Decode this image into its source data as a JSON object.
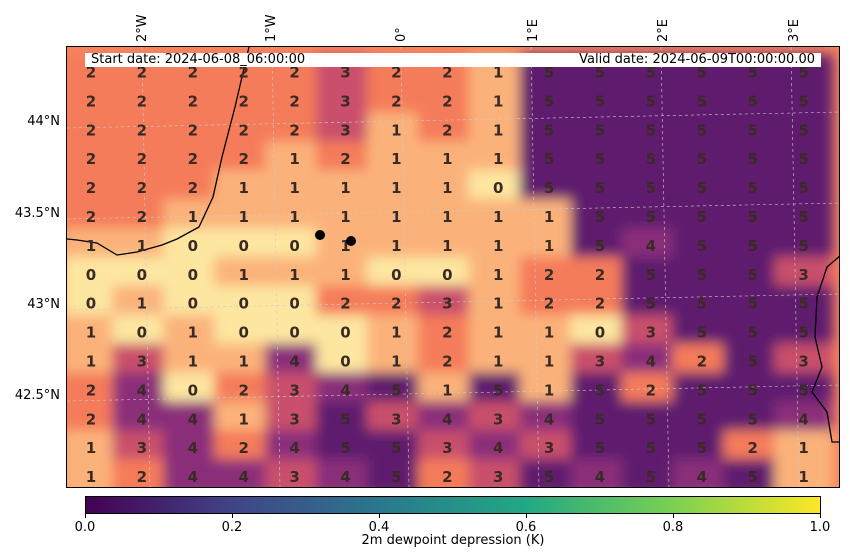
{
  "map": {
    "start_date": "Start date: 2024-06-08_06:00:00",
    "valid_date": "Valid  date: 2024-06-09T00:00:00.00",
    "lon_labels": [
      "2°W",
      "1°W",
      "0°",
      "1°E",
      "2°E",
      "3°E"
    ],
    "lat_labels": [
      "44°N",
      "43.5°N",
      "43°N",
      "42.5°N"
    ],
    "grid_values": [
      [
        2,
        2,
        2,
        2,
        2,
        3,
        2,
        2,
        1,
        5,
        5,
        5,
        5,
        5,
        5
      ],
      [
        2,
        2,
        2,
        2,
        2,
        3,
        2,
        2,
        1,
        5,
        5,
        5,
        5,
        5,
        5
      ],
      [
        2,
        2,
        2,
        2,
        2,
        3,
        1,
        2,
        1,
        5,
        5,
        5,
        5,
        5,
        5
      ],
      [
        2,
        2,
        2,
        2,
        1,
        2,
        1,
        1,
        1,
        5,
        5,
        5,
        5,
        5,
        5
      ],
      [
        2,
        2,
        2,
        1,
        1,
        1,
        1,
        1,
        0,
        5,
        5,
        5,
        5,
        5,
        5
      ],
      [
        2,
        2,
        1,
        1,
        1,
        1,
        1,
        1,
        1,
        1,
        5,
        5,
        5,
        5,
        5
      ],
      [
        1,
        1,
        0,
        0,
        0,
        1,
        1,
        1,
        1,
        1,
        5,
        4,
        5,
        5,
        5
      ],
      [
        0,
        0,
        0,
        1,
        1,
        1,
        0,
        0,
        1,
        2,
        2,
        5,
        5,
        5,
        3
      ],
      [
        0,
        1,
        0,
        0,
        0,
        2,
        2,
        3,
        1,
        2,
        2,
        5,
        5,
        5,
        5
      ],
      [
        1,
        0,
        1,
        0,
        0,
        0,
        1,
        2,
        1,
        1,
        0,
        3,
        5,
        5,
        5
      ],
      [
        1,
        3,
        1,
        1,
        4,
        0,
        1,
        2,
        1,
        1,
        3,
        4,
        2,
        5,
        3
      ],
      [
        2,
        4,
        0,
        2,
        3,
        4,
        5,
        1,
        5,
        1,
        5,
        2,
        5,
        5,
        5
      ],
      [
        2,
        4,
        4,
        1,
        3,
        5,
        3,
        4,
        3,
        4,
        5,
        5,
        5,
        5,
        4
      ],
      [
        1,
        3,
        4,
        2,
        4,
        5,
        5,
        3,
        4,
        3,
        5,
        5,
        5,
        2,
        1
      ],
      [
        1,
        2,
        4,
        4,
        3,
        4,
        5,
        2,
        3,
        5,
        4,
        5,
        4,
        5,
        1
      ]
    ],
    "colors": {
      "low": "#440154",
      "high": "#fde725",
      "field_dry": "#5e1f6e",
      "field_mid": "#f57c5a",
      "field_moist": "#fde6a0"
    }
  },
  "colorbar": {
    "ticks": [
      "0.0",
      "0.2",
      "0.4",
      "0.6",
      "0.8",
      "1.0"
    ],
    "label": "2m dewpoint depression (K)"
  }
}
